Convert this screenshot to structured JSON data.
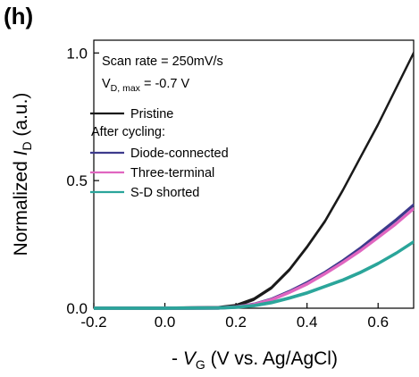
{
  "panel_label": "(h)",
  "chart_data": {
    "type": "line",
    "title": "",
    "xlabel": {
      "prefix": "- ",
      "var": "V",
      "sub": "G",
      "unit": " (V vs. Ag/AgCl)"
    },
    "ylabel": {
      "prefix": "Normalized ",
      "var": "I",
      "sub": "D",
      "unit": " (a.u.)"
    },
    "xlim": [
      -0.2,
      0.7
    ],
    "ylim": [
      0.0,
      1.05
    ],
    "xticks": [
      -0.2,
      0.0,
      0.2,
      0.4,
      0.6
    ],
    "xtick_labels": [
      "-0.2",
      "0.0",
      "0.2",
      "0.4",
      "0.6"
    ],
    "yticks": [
      0.0,
      0.5,
      1.0
    ],
    "ytick_labels": [
      "0.0",
      "0.5",
      "1.0"
    ],
    "grid": false,
    "annotations": {
      "scan_rate": "Scan rate = 250mV/s",
      "vd_prefix": "V",
      "vd_sub": "D, max",
      "vd_value": " = -0.7 V",
      "after_cycling": "After cycling:"
    },
    "legend_position": "top-left",
    "series": [
      {
        "name": "Pristine",
        "color": "#1a1a1a",
        "x": [
          -0.2,
          0.0,
          0.15,
          0.2,
          0.25,
          0.3,
          0.35,
          0.4,
          0.45,
          0.5,
          0.55,
          0.6,
          0.65,
          0.7
        ],
        "y": [
          0.0,
          0.0,
          0.002,
          0.01,
          0.035,
          0.08,
          0.15,
          0.24,
          0.34,
          0.46,
          0.59,
          0.72,
          0.86,
          1.0
        ]
      },
      {
        "name": "Diode-connected",
        "color": "#3d3a8c",
        "x": [
          -0.2,
          0.0,
          0.15,
          0.2,
          0.25,
          0.3,
          0.35,
          0.4,
          0.45,
          0.5,
          0.55,
          0.6,
          0.65,
          0.7
        ],
        "y": [
          0.0,
          0.0,
          0.001,
          0.005,
          0.015,
          0.035,
          0.065,
          0.1,
          0.14,
          0.185,
          0.235,
          0.29,
          0.345,
          0.405
        ]
      },
      {
        "name": "Three-terminal",
        "color": "#e066c0",
        "x": [
          -0.2,
          0.0,
          0.15,
          0.2,
          0.25,
          0.3,
          0.35,
          0.4,
          0.45,
          0.5,
          0.55,
          0.6,
          0.65,
          0.7
        ],
        "y": [
          0.0,
          0.0,
          0.001,
          0.005,
          0.014,
          0.033,
          0.062,
          0.095,
          0.135,
          0.178,
          0.225,
          0.277,
          0.33,
          0.39
        ]
      },
      {
        "name": "S-D shorted",
        "color": "#2aa59a",
        "x": [
          -0.2,
          0.0,
          0.15,
          0.2,
          0.25,
          0.3,
          0.35,
          0.4,
          0.45,
          0.5,
          0.55,
          0.6,
          0.65,
          0.7
        ],
        "y": [
          0.0,
          0.0,
          0.001,
          0.004,
          0.01,
          0.022,
          0.04,
          0.06,
          0.085,
          0.11,
          0.14,
          0.175,
          0.215,
          0.26
        ]
      }
    ]
  }
}
